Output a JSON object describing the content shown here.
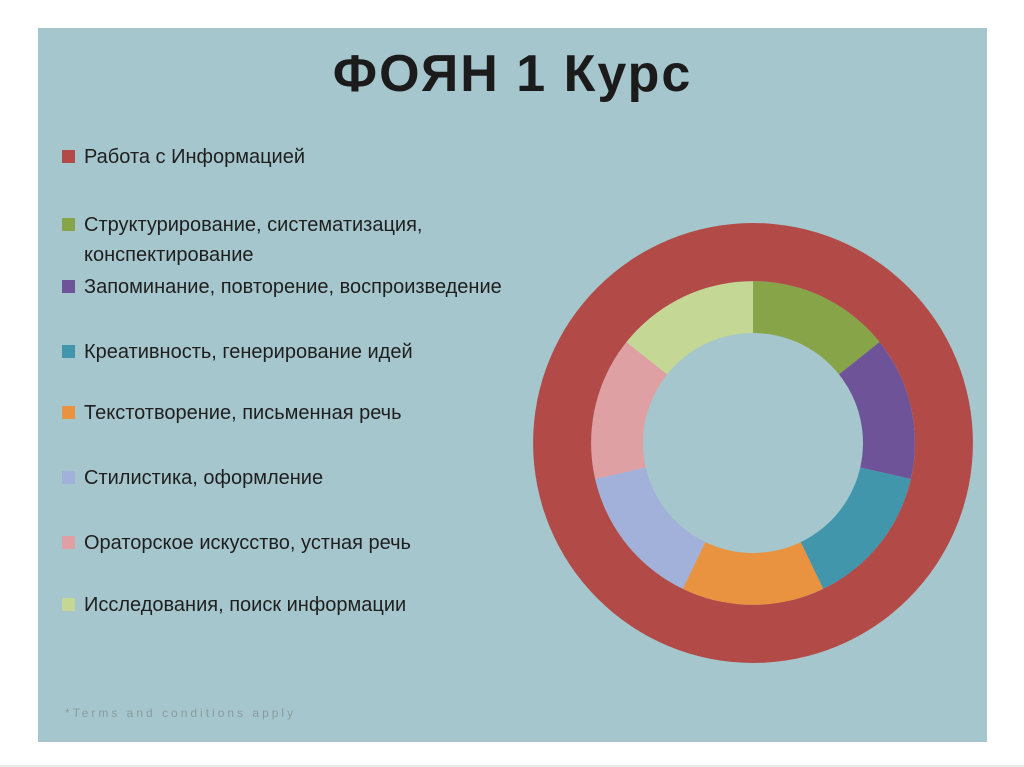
{
  "slide": {
    "title": "ФОЯН 1 Курс",
    "background_color": "#a5c6cc",
    "footer_note": "*Terms and conditions apply"
  },
  "chart_data": {
    "type": "doughnut",
    "title": "ФОЯН 1 Курс",
    "categories": [
      "Работа с Информацией",
      "Структурирование, систематизация,\nконспектирование",
      "Запоминание, повторение, воспроизведение",
      "Креативность, генерирование идей",
      "Текстотворение, письменная речь",
      "Стилистика, оформление",
      "Ораторское искусство, устная речь",
      "Исследования, поиск информации"
    ],
    "colors": [
      "#b24b47",
      "#87a449",
      "#6f5399",
      "#4296ac",
      "#e9923f",
      "#a2b1da",
      "#dfa0a4",
      "#c5d795"
    ],
    "series": [
      {
        "name": "inner-ring",
        "values": [
          0,
          1,
          1,
          1,
          1,
          1,
          1,
          1
        ]
      },
      {
        "name": "outer-ring",
        "values": [
          1,
          0,
          0,
          0,
          0,
          0,
          0,
          0
        ]
      }
    ],
    "start_angle_deg": 0,
    "direction": "clockwise",
    "legend_position": "left",
    "hole_ratio": 0.5,
    "ring_boundary_ratio": 0.736
  }
}
